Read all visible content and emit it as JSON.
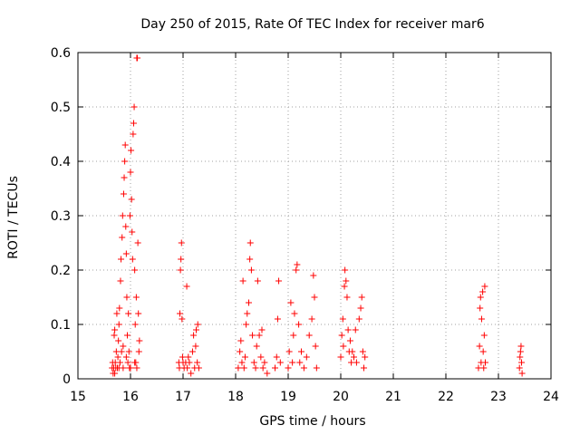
{
  "chart_data": {
    "type": "scatter",
    "title": "Day 250 of 2015, Rate Of TEC Index for receiver mar6",
    "xlabel": "GPS time / hours",
    "ylabel": "ROTI / TECUs",
    "xlim": [
      15,
      24
    ],
    "ylim": [
      0,
      0.6
    ],
    "xticks": [
      "15",
      "16",
      "17",
      "18",
      "19",
      "20",
      "21",
      "22",
      "23",
      "24"
    ],
    "yticks": [
      "0",
      "0.1",
      "0.2",
      "0.3",
      "0.4",
      "0.5",
      "0.6"
    ],
    "grid": true,
    "marker": "+",
    "color": "#ff0000",
    "series": [
      {
        "name": "ROTI",
        "points": [
          [
            15.65,
            0.02
          ],
          [
            15.66,
            0.03
          ],
          [
            15.67,
            0.01
          ],
          [
            15.68,
            0.02
          ],
          [
            15.69,
            0.08
          ],
          [
            15.7,
            0.09
          ],
          [
            15.71,
            0.03
          ],
          [
            15.72,
            0.02
          ],
          [
            15.73,
            0.05
          ],
          [
            15.74,
            0.12
          ],
          [
            15.75,
            0.02
          ],
          [
            15.76,
            0.04
          ],
          [
            15.77,
            0.07
          ],
          [
            15.78,
            0.1
          ],
          [
            15.79,
            0.13
          ],
          [
            15.8,
            0.03
          ],
          [
            15.81,
            0.18
          ],
          [
            15.82,
            0.22
          ],
          [
            15.83,
            0.05
          ],
          [
            15.84,
            0.26
          ],
          [
            15.85,
            0.3
          ],
          [
            15.86,
            0.02
          ],
          [
            15.87,
            0.34
          ],
          [
            15.88,
            0.37
          ],
          [
            15.89,
            0.4
          ],
          [
            15.9,
            0.43
          ],
          [
            15.91,
            0.28
          ],
          [
            15.92,
            0.23
          ],
          [
            15.93,
            0.15
          ],
          [
            15.94,
            0.08
          ],
          [
            15.95,
            0.03
          ],
          [
            15.96,
            0.12
          ],
          [
            15.97,
            0.05
          ],
          [
            15.98,
            0.02
          ],
          [
            15.99,
            0.3
          ],
          [
            16.0,
            0.38
          ],
          [
            16.01,
            0.42
          ],
          [
            16.02,
            0.33
          ],
          [
            16.03,
            0.27
          ],
          [
            16.04,
            0.22
          ],
          [
            16.05,
            0.45
          ],
          [
            16.06,
            0.47
          ],
          [
            16.07,
            0.5
          ],
          [
            16.08,
            0.2
          ],
          [
            16.09,
            0.1
          ],
          [
            16.1,
            0.03
          ],
          [
            16.11,
            0.15
          ],
          [
            16.12,
            0.59
          ],
          [
            16.13,
            0.59
          ],
          [
            16.14,
            0.25
          ],
          [
            16.15,
            0.12
          ],
          [
            16.16,
            0.05
          ],
          [
            16.17,
            0.07
          ],
          [
            15.7,
            0.01
          ],
          [
            15.78,
            0.02
          ],
          [
            15.86,
            0.06
          ],
          [
            15.92,
            0.04
          ],
          [
            16.0,
            0.02
          ],
          [
            16.08,
            0.03
          ],
          [
            16.12,
            0.02
          ],
          [
            16.92,
            0.03
          ],
          [
            16.93,
            0.02
          ],
          [
            16.94,
            0.12
          ],
          [
            16.95,
            0.2
          ],
          [
            16.96,
            0.22
          ],
          [
            16.97,
            0.25
          ],
          [
            16.98,
            0.11
          ],
          [
            16.99,
            0.04
          ],
          [
            17.02,
            0.02
          ],
          [
            17.05,
            0.03
          ],
          [
            17.07,
            0.17
          ],
          [
            17.08,
            0.02
          ],
          [
            17.12,
            0.03
          ],
          [
            17.15,
            0.01
          ],
          [
            17.18,
            0.05
          ],
          [
            17.2,
            0.08
          ],
          [
            17.22,
            0.02
          ],
          [
            17.24,
            0.06
          ],
          [
            17.25,
            0.09
          ],
          [
            17.27,
            0.03
          ],
          [
            17.28,
            0.1
          ],
          [
            17.3,
            0.02
          ],
          [
            17.1,
            0.04
          ],
          [
            17.0,
            0.03
          ],
          [
            18.05,
            0.02
          ],
          [
            18.08,
            0.05
          ],
          [
            18.1,
            0.07
          ],
          [
            18.12,
            0.03
          ],
          [
            18.14,
            0.18
          ],
          [
            18.16,
            0.02
          ],
          [
            18.18,
            0.04
          ],
          [
            18.2,
            0.1
          ],
          [
            18.22,
            0.12
          ],
          [
            18.25,
            0.14
          ],
          [
            18.27,
            0.22
          ],
          [
            18.28,
            0.25
          ],
          [
            18.3,
            0.2
          ],
          [
            18.32,
            0.08
          ],
          [
            18.35,
            0.03
          ],
          [
            18.38,
            0.02
          ],
          [
            18.4,
            0.06
          ],
          [
            18.42,
            0.18
          ],
          [
            18.45,
            0.08
          ],
          [
            18.48,
            0.04
          ],
          [
            18.5,
            0.09
          ],
          [
            18.52,
            0.02
          ],
          [
            18.55,
            0.03
          ],
          [
            18.6,
            0.01
          ],
          [
            18.75,
            0.02
          ],
          [
            18.78,
            0.04
          ],
          [
            18.8,
            0.11
          ],
          [
            18.82,
            0.18
          ],
          [
            18.85,
            0.03
          ],
          [
            19.0,
            0.02
          ],
          [
            19.02,
            0.05
          ],
          [
            19.05,
            0.14
          ],
          [
            19.08,
            0.03
          ],
          [
            19.1,
            0.08
          ],
          [
            19.12,
            0.12
          ],
          [
            19.15,
            0.2
          ],
          [
            19.17,
            0.21
          ],
          [
            19.2,
            0.1
          ],
          [
            19.22,
            0.03
          ],
          [
            19.25,
            0.05
          ],
          [
            19.3,
            0.02
          ],
          [
            19.35,
            0.04
          ],
          [
            19.4,
            0.08
          ],
          [
            19.45,
            0.11
          ],
          [
            19.48,
            0.19
          ],
          [
            19.5,
            0.15
          ],
          [
            19.52,
            0.06
          ],
          [
            19.54,
            0.02
          ],
          [
            20.0,
            0.04
          ],
          [
            20.02,
            0.08
          ],
          [
            20.04,
            0.11
          ],
          [
            20.05,
            0.06
          ],
          [
            20.07,
            0.17
          ],
          [
            20.08,
            0.2
          ],
          [
            20.1,
            0.18
          ],
          [
            20.12,
            0.15
          ],
          [
            20.14,
            0.09
          ],
          [
            20.16,
            0.05
          ],
          [
            20.18,
            0.07
          ],
          [
            20.2,
            0.03
          ],
          [
            20.22,
            0.05
          ],
          [
            20.25,
            0.04
          ],
          [
            20.28,
            0.09
          ],
          [
            20.3,
            0.03
          ],
          [
            20.35,
            0.11
          ],
          [
            20.38,
            0.13
          ],
          [
            20.4,
            0.15
          ],
          [
            20.42,
            0.05
          ],
          [
            20.44,
            0.02
          ],
          [
            20.46,
            0.04
          ],
          [
            22.62,
            0.02
          ],
          [
            22.64,
            0.06
          ],
          [
            22.65,
            0.13
          ],
          [
            22.66,
            0.15
          ],
          [
            22.67,
            0.03
          ],
          [
            22.68,
            0.11
          ],
          [
            22.7,
            0.16
          ],
          [
            22.71,
            0.05
          ],
          [
            22.72,
            0.02
          ],
          [
            22.73,
            0.08
          ],
          [
            22.74,
            0.17
          ],
          [
            22.75,
            0.03
          ],
          [
            23.4,
            0.02
          ],
          [
            23.41,
            0.04
          ],
          [
            23.42,
            0.05
          ],
          [
            23.43,
            0.06
          ],
          [
            23.44,
            0.03
          ],
          [
            23.45,
            0.01
          ]
        ]
      }
    ]
  }
}
